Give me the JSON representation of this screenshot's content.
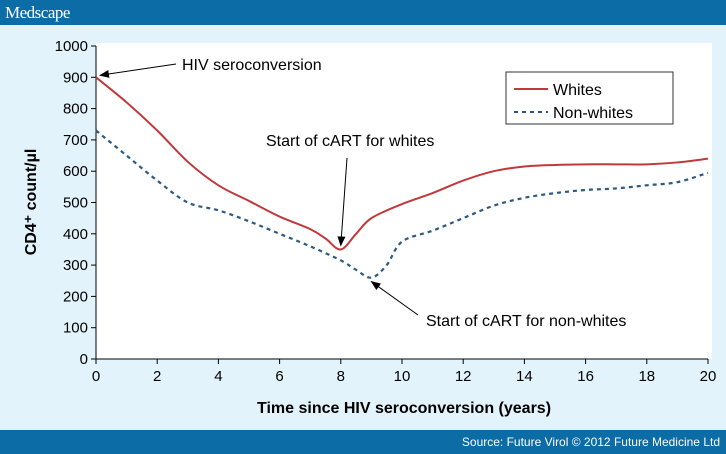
{
  "header": {
    "logo": "Medscape"
  },
  "footer": {
    "source": "Source: Future Virol © 2012 Future Medicine Ltd"
  },
  "chart_data": {
    "type": "line",
    "xlabel": "Time since HIV seroconversion (years)",
    "ylabel": "CD4⁺ count/µl",
    "xlim": [
      0,
      20
    ],
    "ylim": [
      0,
      1000
    ],
    "xticks": [
      0,
      2,
      4,
      6,
      8,
      10,
      12,
      14,
      16,
      18,
      20
    ],
    "yticks": [
      0,
      100,
      200,
      300,
      400,
      500,
      600,
      700,
      800,
      900,
      1000
    ],
    "grid": false,
    "legend_position": "top-right",
    "series": [
      {
        "name": "Whites",
        "color": "#c0393b",
        "style": "solid",
        "x": [
          0,
          1,
          2,
          3,
          4,
          5,
          6,
          7,
          7.5,
          8,
          8.5,
          9,
          10,
          11,
          12,
          13,
          14,
          15,
          16,
          17,
          18,
          19,
          20
        ],
        "y": [
          900,
          820,
          730,
          630,
          555,
          505,
          455,
          415,
          385,
          350,
          400,
          450,
          495,
          530,
          570,
          600,
          615,
          620,
          622,
          622,
          622,
          628,
          640
        ]
      },
      {
        "name": "Non-whites",
        "color": "#2e5a80",
        "style": "dashed",
        "x": [
          0,
          1,
          2,
          3,
          4,
          5,
          6,
          7,
          8,
          8.5,
          9,
          9.5,
          10,
          11,
          12,
          13,
          14,
          15,
          16,
          17,
          18,
          19,
          20
        ],
        "y": [
          730,
          650,
          570,
          500,
          475,
          440,
          400,
          360,
          315,
          285,
          260,
          300,
          375,
          410,
          450,
          490,
          515,
          530,
          540,
          545,
          555,
          565,
          595
        ]
      }
    ],
    "annotations": [
      {
        "text": "HIV seroconversion",
        "x": 0,
        "y": 900
      },
      {
        "text": "Start of cART for whites",
        "x": 8,
        "y": 350
      },
      {
        "text": "Start of cART for non-whites",
        "x": 9,
        "y": 260
      }
    ]
  }
}
